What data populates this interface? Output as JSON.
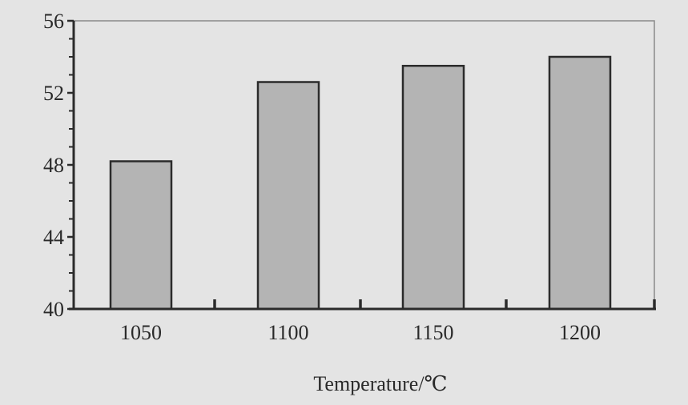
{
  "chart_data": {
    "type": "bar",
    "title": "",
    "xlabel": "Temperature/℃",
    "ylabel": "",
    "categories": [
      "1050",
      "1100",
      "1150",
      "1200"
    ],
    "values": [
      48.2,
      52.6,
      53.5,
      54.0
    ],
    "ylim": [
      40,
      56
    ],
    "yticks": [
      40,
      44,
      48,
      52,
      56
    ],
    "y_minor_step": 1,
    "grid": false,
    "legend": "none",
    "colors": {
      "background": "#e4e4e4",
      "bar_fill": "#b4b4b4",
      "bar_stroke": "#2b2b2b",
      "axis": "#2b2b2b",
      "frame": "#8a8a8a",
      "text": "#2a2a2a"
    }
  }
}
